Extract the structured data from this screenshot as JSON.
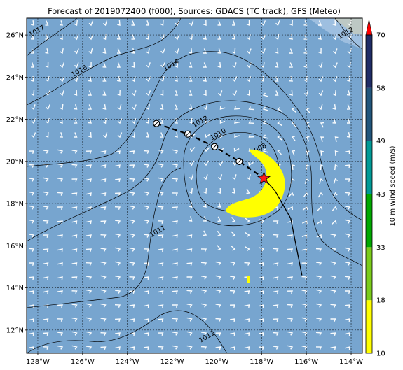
{
  "title": "Forecast of 2019072400 (f000), Sources: GDACS (TC track), GFS (Meteo)",
  "map": {
    "lon_range": [
      -128.5,
      -113.5
    ],
    "lat_range": [
      10.9,
      26.8
    ],
    "lon_ticks": [
      {
        "value": -128,
        "label": "128°W"
      },
      {
        "value": -126,
        "label": "126°W"
      },
      {
        "value": -124,
        "label": "124°W"
      },
      {
        "value": -122,
        "label": "122°W"
      },
      {
        "value": -120,
        "label": "120°W"
      },
      {
        "value": -118,
        "label": "118°W"
      },
      {
        "value": -116,
        "label": "116°W"
      },
      {
        "value": -114,
        "label": "114°W"
      }
    ],
    "lat_ticks": [
      {
        "value": 12,
        "label": "12°N"
      },
      {
        "value": 14,
        "label": "14°N"
      },
      {
        "value": 16,
        "label": "16°N"
      },
      {
        "value": 18,
        "label": "18°N"
      },
      {
        "value": 20,
        "label": "20°N"
      },
      {
        "value": 22,
        "label": "22°N"
      },
      {
        "value": 24,
        "label": "24°N"
      },
      {
        "value": 26,
        "label": "26°N"
      }
    ],
    "ocean_color": "#77a5cf",
    "gridlines": true
  },
  "isobars": [
    {
      "label": "1017",
      "label_lon": -128.0,
      "label_lat": 26.1
    },
    {
      "label": "1016",
      "label_lon": -126.1,
      "label_lat": 24.2
    },
    {
      "label": "1014",
      "label_lon": -122.0,
      "label_lat": 24.5
    },
    {
      "label": "1012",
      "label_lon": -120.7,
      "label_lat": 21.8
    },
    {
      "label": "1012",
      "label_lon": -114.2,
      "label_lat": 26.0
    },
    {
      "label": "1010",
      "label_lon": -119.9,
      "label_lat": 21.2
    },
    {
      "label": "1008",
      "label_lon": -118.1,
      "label_lat": 20.5
    },
    {
      "label": "1011",
      "label_lon": -122.6,
      "label_lat": 16.6
    },
    {
      "label": "1011",
      "label_lon": -120.4,
      "label_lat": 11.6
    }
  ],
  "track": {
    "past": [
      {
        "lon": -122.7,
        "lat": 21.8
      },
      {
        "lon": -121.3,
        "lat": 21.3
      },
      {
        "lon": -120.1,
        "lat": 20.7
      },
      {
        "lon": -119.0,
        "lat": 20.0
      }
    ],
    "current": {
      "lon": -117.9,
      "lat": 19.2
    },
    "forecast": [
      {
        "lon": -117.9,
        "lat": 19.2
      },
      {
        "lon": -117.4,
        "lat": 18.6
      },
      {
        "lon": -116.7,
        "lat": 17.3
      },
      {
        "lon": -116.2,
        "lat": 14.6
      }
    ]
  },
  "wind_swath": {
    "color": "#ffff00",
    "level_min": 10,
    "level_max": 18
  },
  "colorbar": {
    "label": "10 m wind speed (m/s)",
    "levels": [
      {
        "label": "10",
        "value": 10,
        "color": "#ffff00"
      },
      {
        "label": "18",
        "value": 18,
        "color": "#7bcc1a"
      },
      {
        "label": "33",
        "value": 33,
        "color": "#00a800"
      },
      {
        "label": "43",
        "value": 43,
        "color": "#009a96"
      },
      {
        "label": "49",
        "value": 49,
        "color": "#21557b"
      },
      {
        "label": "58",
        "value": 58,
        "color": "#1f2c66"
      },
      {
        "label": "70",
        "value": 70,
        "color": "#ff0000"
      }
    ]
  }
}
